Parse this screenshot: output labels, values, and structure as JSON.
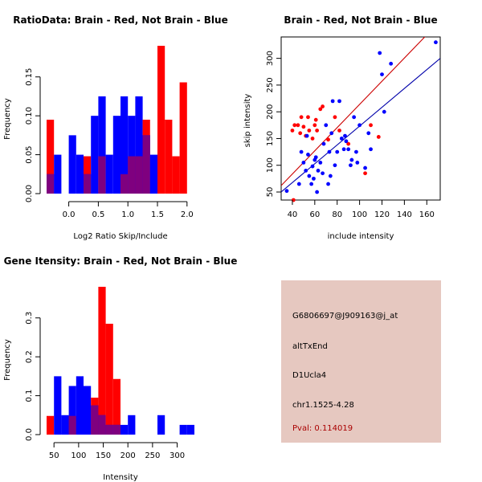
{
  "panels": [
    {
      "title": "RatioData: Brain - Red, Not Brain - Blue",
      "xlabel": "Log2 Ratio Skip/Include",
      "ylabel": "Frequency"
    },
    {
      "title": "Brain - Red, Not Brain - Blue",
      "xlabel": "include intensity",
      "ylabel": "skip intensity"
    },
    {
      "title": "Gene Itensity: Brain - Red, Not Brain - Blue",
      "xlabel": "Intensity",
      "ylabel": "Frequency"
    }
  ],
  "info_box": {
    "probe_id": "G6806697@J909163@j_at",
    "event_type": "altTxEnd",
    "gene": "D1Ucla4",
    "location": "chr1.1525-4.28",
    "pval": "Pval: 0.114019"
  },
  "colors": {
    "brain": "#ff0000",
    "not_brain": "#0000ff",
    "overlap": "#7f007f",
    "info_bg": "#e6c8c0",
    "pval_text": "#aa0000"
  },
  "chart_data": [
    {
      "type": "bar",
      "subtype": "overlaid-histogram",
      "title": "RatioData: Brain - Red, Not Brain - Blue",
      "xlabel": "Log2 Ratio Skip/Include",
      "ylabel": "Frequency",
      "bin_width": 0.125,
      "bin_start": -0.375,
      "xlim": [
        -0.375,
        2.125
      ],
      "ylim": [
        0,
        0.19
      ],
      "xticks": [
        "0.0",
        "0.5",
        "1.0",
        "1.5",
        "2.0"
      ],
      "xtick_values": [
        0,
        0.5,
        1.0,
        1.5,
        2.0
      ],
      "yticks": [
        "0.00",
        "0.05",
        "0.10",
        "0.15"
      ],
      "ytick_values": [
        0,
        0.05,
        0.1,
        0.15
      ],
      "series": [
        {
          "name": "Brain",
          "color": "red",
          "values": [
            0.095,
            0,
            0,
            0,
            0,
            0.048,
            0,
            0.048,
            0,
            0,
            0.025,
            0.048,
            0.048,
            0.095,
            0,
            0.19,
            0.095,
            0.048,
            0.143
          ]
        },
        {
          "name": "Not Brain",
          "color": "blue",
          "values": [
            0.025,
            0.05,
            0,
            0.075,
            0.05,
            0.025,
            0.1,
            0.125,
            0.05,
            0.1,
            0.125,
            0.1,
            0.125,
            0.075,
            0.05,
            0,
            0,
            0,
            0
          ]
        }
      ]
    },
    {
      "type": "scatter",
      "title": "Brain - Red, Not Brain - Blue",
      "xlabel": "include intensity",
      "ylabel": "skip intensity",
      "xlim": [
        30,
        172
      ],
      "ylim": [
        35,
        340
      ],
      "xticks": [
        "40",
        "60",
        "80",
        "100",
        "120",
        "140",
        "160"
      ],
      "xtick_values": [
        40,
        60,
        80,
        100,
        120,
        140,
        160
      ],
      "yticks": [
        "50",
        "100",
        "150",
        "200",
        "250",
        "300"
      ],
      "ytick_values": [
        50,
        100,
        150,
        200,
        250,
        300
      ],
      "series": [
        {
          "name": "Brain",
          "color": "red",
          "points": [
            [
              40,
              165
            ],
            [
              41,
              35
            ],
            [
              42,
              175
            ],
            [
              45,
              175
            ],
            [
              47,
              160
            ],
            [
              48,
              190
            ],
            [
              50,
              172
            ],
            [
              52,
              155
            ],
            [
              54,
              190
            ],
            [
              55,
              165
            ],
            [
              58,
              150
            ],
            [
              60,
              175
            ],
            [
              61,
              185
            ],
            [
              62,
              165
            ],
            [
              65,
              205
            ],
            [
              67,
              210
            ],
            [
              72,
              148
            ],
            [
              78,
              190
            ],
            [
              82,
              165
            ],
            [
              90,
              140
            ],
            [
              105,
              85
            ],
            [
              110,
              175
            ],
            [
              117,
              153
            ]
          ],
          "fit_line": [
            [
              30,
              62
            ],
            [
              172,
              370
            ]
          ]
        },
        {
          "name": "Not Brain",
          "color": "blue",
          "points": [
            [
              35,
              52
            ],
            [
              46,
              65
            ],
            [
              48,
              125
            ],
            [
              50,
              105
            ],
            [
              52,
              90
            ],
            [
              53,
              155
            ],
            [
              54,
              120
            ],
            [
              55,
              80
            ],
            [
              57,
              65
            ],
            [
              58,
              98
            ],
            [
              59,
              75
            ],
            [
              60,
              110
            ],
            [
              61,
              115
            ],
            [
              62,
              50
            ],
            [
              63,
              90
            ],
            [
              65,
              105
            ],
            [
              67,
              85
            ],
            [
              68,
              140
            ],
            [
              70,
              175
            ],
            [
              72,
              65
            ],
            [
              73,
              125
            ],
            [
              74,
              80
            ],
            [
              75,
              160
            ],
            [
              76,
              220
            ],
            [
              78,
              100
            ],
            [
              80,
              125
            ],
            [
              82,
              220
            ],
            [
              84,
              150
            ],
            [
              86,
              130
            ],
            [
              87,
              155
            ],
            [
              88,
              145
            ],
            [
              90,
              130
            ],
            [
              92,
              100
            ],
            [
              93,
              110
            ],
            [
              95,
              190
            ],
            [
              97,
              125
            ],
            [
              98,
              105
            ],
            [
              100,
              175
            ],
            [
              105,
              95
            ],
            [
              108,
              160
            ],
            [
              110,
              130
            ],
            [
              118,
              310
            ],
            [
              120,
              270
            ],
            [
              122,
              200
            ],
            [
              128,
              290
            ],
            [
              168,
              330
            ]
          ],
          "fit_line": [
            [
              30,
              50
            ],
            [
              172,
              300
            ]
          ]
        }
      ]
    },
    {
      "type": "bar",
      "subtype": "overlaid-histogram",
      "title": "Gene Itensity: Brain - Red, Not Brain - Blue",
      "xlabel": "Intensity",
      "ylabel": "Frequency",
      "bin_width": 15,
      "bin_start": 35,
      "xlim": [
        35,
        335
      ],
      "ylim": [
        0,
        0.38
      ],
      "xticks": [
        "50",
        "100",
        "150",
        "200",
        "250",
        "300"
      ],
      "xtick_values": [
        50,
        100,
        150,
        200,
        250,
        300
      ],
      "yticks": [
        "0.0",
        "0.1",
        "0.2",
        "0.3"
      ],
      "ytick_values": [
        0,
        0.1,
        0.2,
        0.3
      ],
      "series": [
        {
          "name": "Brain",
          "color": "red",
          "values": [
            0.048,
            0,
            0,
            0.048,
            0,
            0,
            0.095,
            0.38,
            0.285,
            0.143,
            0,
            0,
            0,
            0,
            0,
            0,
            0,
            0,
            0,
            0
          ]
        },
        {
          "name": "Not Brain",
          "color": "blue",
          "values": [
            0,
            0.15,
            0.05,
            0.125,
            0.15,
            0.125,
            0.075,
            0.05,
            0.025,
            0.025,
            0.025,
            0.05,
            0,
            0,
            0,
            0.05,
            0,
            0,
            0.025,
            0.025
          ]
        }
      ]
    }
  ]
}
